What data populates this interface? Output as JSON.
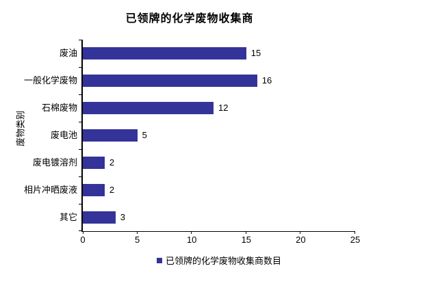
{
  "page": {
    "background": "#ffffff",
    "text_color": "#000000"
  },
  "chart_data": {
    "type": "bar",
    "orientation": "horizontal",
    "title": "已领牌的化学废物收集商",
    "ylabel": "废物类别",
    "xlabel": "",
    "categories": [
      "废油",
      "一般化学废物",
      "石棉废物",
      "废电池",
      "废电镀溶剂",
      "相片冲晒废液",
      "其它"
    ],
    "values": [
      15,
      16,
      12,
      5,
      2,
      2,
      3
    ],
    "xlim": [
      0,
      25
    ],
    "xticks": [
      0,
      5,
      10,
      15,
      20,
      25
    ],
    "grid": false,
    "bar_color": "#333399",
    "axis_color": "#000000",
    "legend_position": "bottom",
    "legend": [
      {
        "label": "已领牌的化学废物收集商数目",
        "color": "#333399"
      }
    ]
  }
}
